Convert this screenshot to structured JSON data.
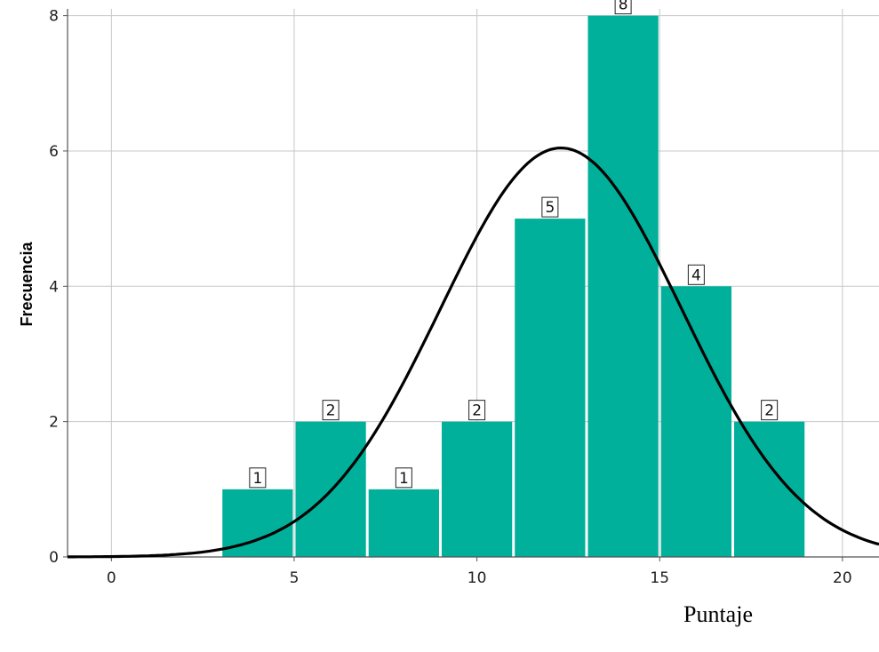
{
  "chart_data": {
    "type": "bar",
    "title": "",
    "xlabel": "Puntaje",
    "ylabel": "Frecuencia",
    "bins": [
      {
        "start": 3,
        "end": 5,
        "value": 1
      },
      {
        "start": 5,
        "end": 7,
        "value": 2
      },
      {
        "start": 7,
        "end": 9,
        "value": 1
      },
      {
        "start": 9,
        "end": 11,
        "value": 2
      },
      {
        "start": 11,
        "end": 13,
        "value": 5
      },
      {
        "start": 13,
        "end": 15,
        "value": 8
      },
      {
        "start": 15,
        "end": 17,
        "value": 4
      },
      {
        "start": 17,
        "end": 19,
        "value": 2
      }
    ],
    "bar_color": "#00b09b",
    "curve_color": "#000000",
    "normal_curve": {
      "mean": 12.3,
      "sd": 3.3,
      "n": 25,
      "bin_width": 2
    },
    "xlim": [
      -1.2,
      21
    ],
    "ylim": [
      0,
      8.1
    ],
    "xticks": [
      0,
      5,
      10,
      15,
      20
    ],
    "yticks": [
      0,
      2,
      4,
      6,
      8
    ],
    "grid": true
  }
}
